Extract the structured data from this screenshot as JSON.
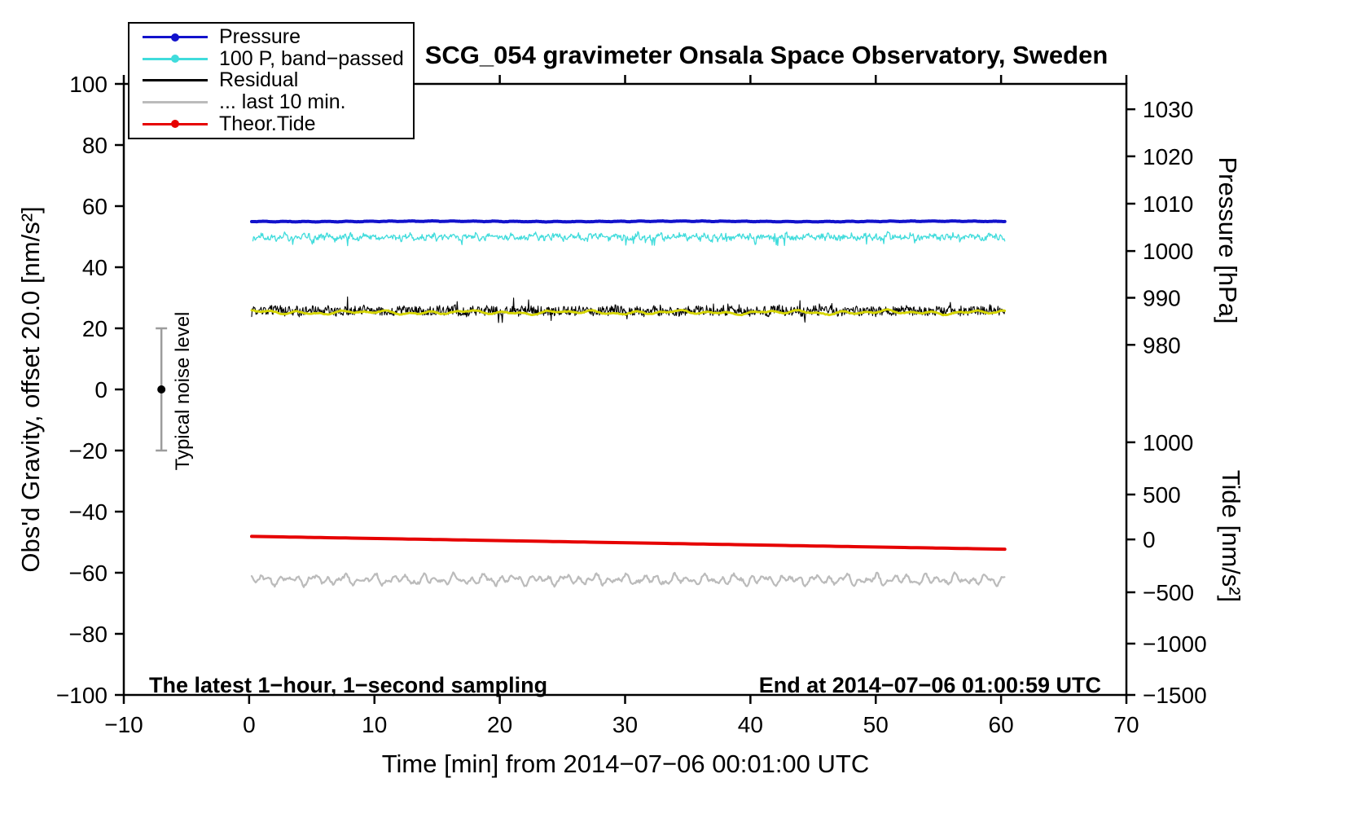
{
  "chart_data": {
    "type": "line",
    "title": "SCG_054 gravimeter Onsala Space Observatory, Sweden",
    "xlabel": "Time [min] from 2014−07−06 00:01:00 UTC",
    "ylabel": "Obs'd Gravity, offset 20.0 [nm/s²]",
    "xlim": [
      -10,
      70
    ],
    "ylim": [
      -100,
      100
    ],
    "xticks": [
      -10,
      0,
      10,
      20,
      30,
      40,
      50,
      60,
      70
    ],
    "yticks": [
      -100,
      -80,
      -60,
      -40,
      -20,
      0,
      20,
      40,
      60,
      80,
      100
    ],
    "grid": false,
    "pressure_axis": {
      "label": "Pressure [hPa]",
      "ticks": [
        {
          "v": 1030,
          "y": 91.7
        },
        {
          "v": 1020,
          "y": 76.3
        },
        {
          "v": 1010,
          "y": 60.8
        },
        {
          "v": 1000,
          "y": 45.3
        },
        {
          "v": 990,
          "y": 30.0
        },
        {
          "v": 980,
          "y": 14.6
        }
      ]
    },
    "tide_axis": {
      "label": "Tide [nm/s²]",
      "ticks": [
        {
          "v": 1000,
          "y": -17.3
        },
        {
          "v": 500,
          "y": -34.4
        },
        {
          "v": 0,
          "y": -49.1
        },
        {
          "v": -500,
          "y": -66.4
        },
        {
          "v": -1000,
          "y": -83.2
        },
        {
          "v": -1500,
          "y": -100.0
        }
      ]
    },
    "series": [
      {
        "id": "theor-tide",
        "kind": "trend",
        "seed": 55,
        "color": "#e60000",
        "width": 4,
        "x0": 0.2,
        "x1": 60.3,
        "y_start": -48.1,
        "y_end": -52.3,
        "tide_value_start_nms2": 25,
        "tide_value_end_nms2": -95
      },
      {
        "id": "residual-last-10-min",
        "kind": "noisy",
        "seed": 44,
        "color": "#bbbbbb",
        "width": 2.2,
        "x0": 0.2,
        "x1": 60.3,
        "step": 0.08,
        "baseline": -62.3,
        "wave": 2.2,
        "freqs": [
          0.45,
          0.8,
          1.3
        ],
        "jitter": 0.45,
        "spike": 0,
        "spike_p": 0,
        "spike_dir": 0
      },
      {
        "id": "pressure-bandpassed",
        "kind": "noisy",
        "seed": 22,
        "color": "#40dcdc",
        "width": 1.3,
        "x0": 0.3,
        "x1": 60.3,
        "step": 0.06,
        "baseline": 49.9,
        "wave": 1.1,
        "freqs": [
          0.6,
          1.1,
          2.1
        ],
        "jitter": 0.85,
        "spike": 2.6,
        "spike_p": 0.03,
        "spike_dir": -1
      },
      {
        "id": "residual",
        "kind": "noisy",
        "seed": 33,
        "color": "#000000",
        "width": 1.1,
        "x0": 0.2,
        "x1": 60.3,
        "step": 0.05,
        "baseline": 25.7,
        "wave": 0.7,
        "freqs": [
          0.3,
          0.7,
          1.5
        ],
        "jitter": 1.5,
        "spike": 3.2,
        "spike_p": 0.03,
        "spike_dir": 0
      },
      {
        "id": "residual-smoothed",
        "kind": "noisy",
        "seed": 66,
        "color": "#d6d600",
        "width": 2.8,
        "x0": 0.2,
        "x1": 60.3,
        "step": 0.1,
        "baseline": 25.2,
        "wave": 0.9,
        "freqs": [
          0.12,
          0.3,
          0.55
        ],
        "jitter": 0.12,
        "spike": 0,
        "spike_p": 0,
        "spike_dir": 0
      },
      {
        "id": "pressure",
        "kind": "noisy",
        "seed": 11,
        "color": "#1212cc",
        "width": 4,
        "x0": 0.2,
        "x1": 60.3,
        "step": 0.1,
        "baseline": 55.0,
        "wave": 0.15,
        "freqs": [
          0.05,
          0.6
        ],
        "jitter": 0.05,
        "spike": 0,
        "spike_p": 0,
        "spike_dir": 0,
        "pressure_value_hPa": 1006
      }
    ],
    "noise_bar": {
      "x": -7,
      "center": 0,
      "half_range": 20,
      "label": "Typical noise level"
    },
    "annotations": {
      "sampling": "The latest 1−hour, 1−second sampling",
      "end_time": "End at 2014−07−06 01:00:59 UTC"
    }
  },
  "legend": {
    "items": [
      {
        "label": "Pressure",
        "color": "#1212cc",
        "marker": true
      },
      {
        "label": "100 P, band−passed",
        "color": "#40dcdc",
        "marker": true
      },
      {
        "label": "Residual",
        "color": "#000000",
        "marker": false
      },
      {
        "label": "... last 10 min.",
        "color": "#bbbbbb",
        "marker": false
      },
      {
        "label": "Theor.Tide",
        "color": "#e60000",
        "marker": true
      }
    ]
  }
}
